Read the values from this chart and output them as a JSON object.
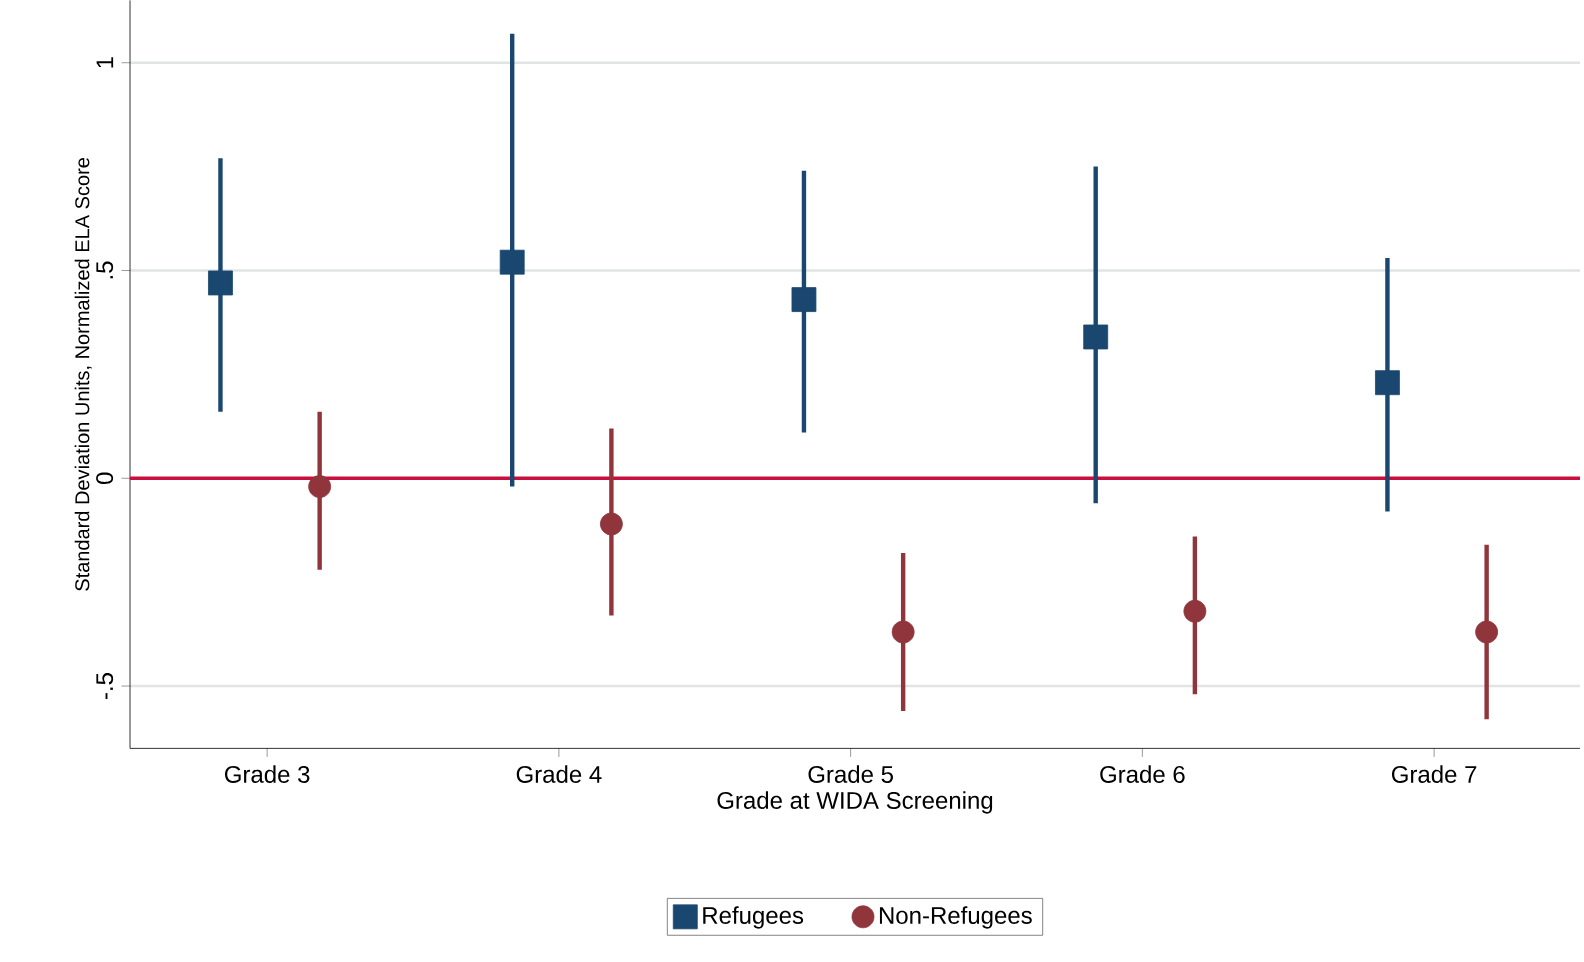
{
  "chart_data": {
    "type": "scatter",
    "xlabel": "Grade at WIDA Screening",
    "ylabel": "Standard Deviation Units, Normalized ELA Score",
    "categories": [
      "Grade 3",
      "Grade 4",
      "Grade 5",
      "Grade 6",
      "Grade 7"
    ],
    "series": [
      {
        "name": "Refugees",
        "color": "#1a476f",
        "marker": "square",
        "values": [
          0.47,
          0.52,
          0.43,
          0.34,
          0.23
        ],
        "errors": [
          [
            0.16,
            0.77
          ],
          [
            -0.02,
            1.07
          ],
          [
            0.11,
            0.74
          ],
          [
            -0.06,
            0.75
          ],
          [
            -0.08,
            0.53
          ]
        ]
      },
      {
        "name": "Non-Refugees",
        "color": "#90353b",
        "marker": "circle",
        "values": [
          -0.02,
          -0.11,
          -0.37,
          -0.32,
          -0.37
        ],
        "errors": [
          [
            -0.22,
            0.16
          ],
          [
            -0.33,
            0.12
          ],
          [
            -0.56,
            -0.18
          ],
          [
            -0.52,
            -0.14
          ],
          [
            -0.58,
            -0.16
          ]
        ]
      }
    ],
    "ylim": [
      -0.65,
      1.15
    ],
    "yticks": [
      {
        "value": -0.5,
        "label": "-.5"
      },
      {
        "value": 0,
        "label": "0"
      },
      {
        "value": 0.5,
        "label": ".5"
      },
      {
        "value": 1,
        "label": "1"
      }
    ],
    "grid": "y",
    "legend": "bottom",
    "ref_lines": [
      {
        "axis": "y",
        "value": 0,
        "color": "#c8103f"
      }
    ]
  }
}
